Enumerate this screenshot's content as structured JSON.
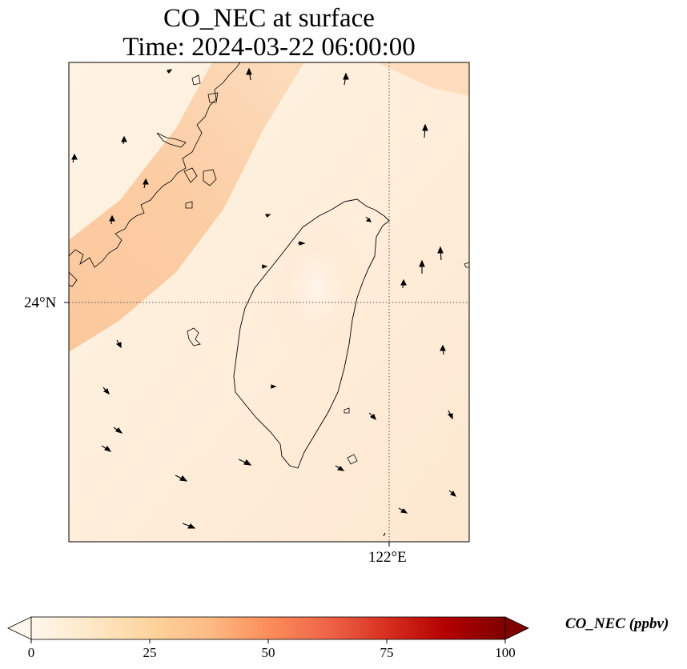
{
  "title": {
    "line1": "CO_NEC at surface",
    "line2": "Time: 2024-03-22 06:00:00"
  },
  "map": {
    "lat_gridline_label": "24°N",
    "lon_gridline_label": "122°E",
    "field_colors": {
      "low": "#fff3e4",
      "mid": "#fde2c4",
      "high": "#fbc699"
    },
    "coastline_color": "#000000",
    "gridline_style": "dotted"
  },
  "colorbar": {
    "label": "CO_NEC (ppbv)",
    "ticks": [
      "0",
      "25",
      "50",
      "75",
      "100"
    ],
    "tick_values": [
      0,
      25,
      50,
      75,
      100
    ],
    "range": [
      0,
      100
    ],
    "extend": "both",
    "colormap": "OrRd",
    "colors": [
      "#fff7ec",
      "#fee8c8",
      "#fdd49e",
      "#fdbb84",
      "#fc8d59",
      "#ef6548",
      "#d7301f",
      "#b30000",
      "#7f0000"
    ]
  }
}
